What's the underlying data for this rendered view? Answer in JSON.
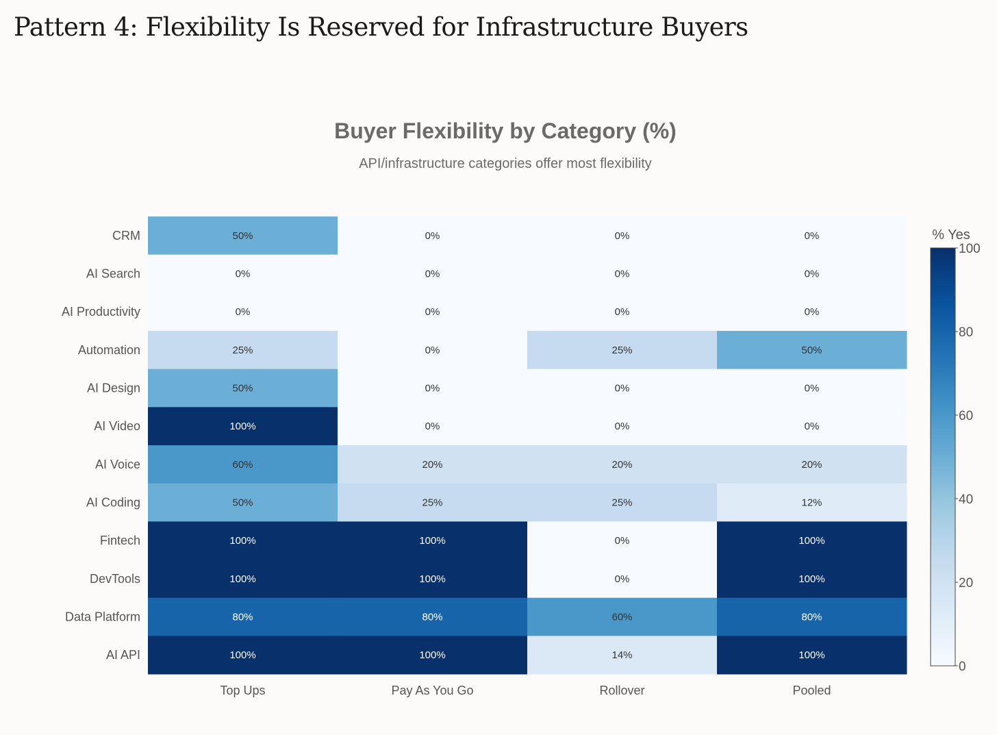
{
  "page_title": "Pattern 4: Flexibility Is Reserved for Infrastructure Buyers",
  "chart_data": {
    "type": "heatmap",
    "title": "Buyer Flexibility by Category (%)",
    "subtitle": "API/infrastructure categories offer most flexibility",
    "columns": [
      "Top Ups",
      "Pay As You Go",
      "Rollover",
      "Pooled"
    ],
    "rows": [
      "CRM",
      "AI Search",
      "AI Productivity",
      "Automation",
      "AI Design",
      "AI Video",
      "AI Voice",
      "AI Coding",
      "Fintech",
      "DevTools",
      "Data Platform",
      "AI API"
    ],
    "values": [
      [
        50,
        0,
        0,
        0
      ],
      [
        0,
        0,
        0,
        0
      ],
      [
        0,
        0,
        0,
        0
      ],
      [
        25,
        0,
        25,
        50
      ],
      [
        50,
        0,
        0,
        0
      ],
      [
        100,
        0,
        0,
        0
      ],
      [
        60,
        20,
        20,
        20
      ],
      [
        50,
        25,
        25,
        12
      ],
      [
        100,
        100,
        0,
        100
      ],
      [
        100,
        100,
        0,
        100
      ],
      [
        80,
        80,
        60,
        80
      ],
      [
        100,
        100,
        14,
        100
      ]
    ],
    "value_suffix": "%",
    "colorscale": "Blues",
    "colorbar": {
      "title": "% Yes",
      "range": [
        0,
        100
      ],
      "ticks": [
        "0",
        "20",
        "40",
        "60",
        "80",
        "100"
      ]
    }
  }
}
